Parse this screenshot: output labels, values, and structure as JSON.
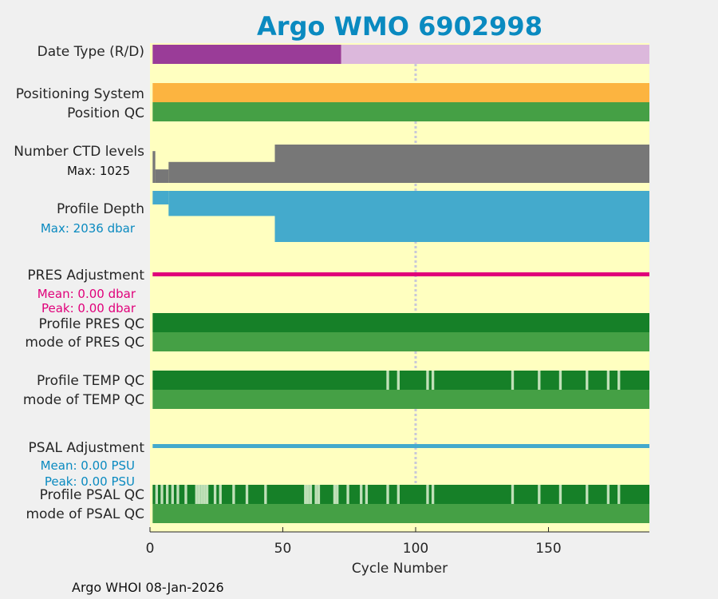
{
  "colors": {
    "background": "#f0f0f0",
    "plot_bg": "#ffffc0",
    "title": "#0a8ac0",
    "date_type_D": "#9a3c98",
    "date_type_R": "#dcb8dc",
    "positioning": "#fcb440",
    "qc_good": "#168028",
    "qc_mode": "#45a045",
    "qc_flagged": "#c0e0b8",
    "ctd_levels": "#777777",
    "profile_depth": "#44aacc",
    "pres_adjustment": "#e0007a",
    "psal_adjustment": "#44aacc",
    "gridline": "#c8c8d8"
  },
  "chart_data": {
    "type": "bar",
    "title": "Argo WMO 6902998",
    "xlabel": "Cycle Number",
    "xlim": [
      0,
      188
    ],
    "xticks": [
      "0",
      "50",
      "100",
      "150"
    ],
    "grid": "dotted vertical line at cycle 100",
    "rows": {
      "date_type": {
        "label": "Date Type (R/D)",
        "segments": [
          {
            "start": 1,
            "end": 72,
            "type": "D"
          },
          {
            "start": 72,
            "end": 188,
            "type": "R"
          }
        ]
      },
      "positioning_system": {
        "label": "Positioning System"
      },
      "position_qc": {
        "label": "Position QC"
      },
      "ctd_levels": {
        "label": "Number CTD levels",
        "max_label": "Max: 1025",
        "max": 1025,
        "steps": [
          {
            "start": 1,
            "end": 2,
            "value": 850
          },
          {
            "start": 2,
            "end": 7,
            "value": 360
          },
          {
            "start": 7,
            "end": 47,
            "value": 560
          },
          {
            "start": 47,
            "end": 188,
            "value": 1025
          }
        ]
      },
      "profile_depth": {
        "label": "Profile Depth",
        "max_label": "Max: 2036 dbar",
        "max": 2036,
        "steps": [
          {
            "start": 1,
            "end": 7,
            "value": 540
          },
          {
            "start": 7,
            "end": 47,
            "value": 1000
          },
          {
            "start": 47,
            "end": 188,
            "value": 2036
          }
        ]
      },
      "pres_adjustment": {
        "label": "PRES Adjustment",
        "mean_label": "Mean: 0.00 dbar",
        "peak_label": "Peak: 0.00 dbar",
        "mean": 0.0,
        "peak": 0.0
      },
      "profile_pres_qc": {
        "label": "Profile PRES QC",
        "flagged_cycles": []
      },
      "mode_pres_qc": {
        "label": "mode of PRES QC"
      },
      "profile_temp_qc": {
        "label": "Profile TEMP QC",
        "flagged_cycles": [
          89,
          93,
          104,
          106,
          136,
          146,
          154,
          164,
          172,
          176
        ]
      },
      "mode_temp_qc": {
        "label": "mode of TEMP QC"
      },
      "psal_adjustment": {
        "label": "PSAL Adjustment",
        "mean_label": "Mean: 0.00 PSU",
        "peak_label": "Peak: 0.00 PSU",
        "mean": 0.0,
        "peak": 0.0
      },
      "profile_psal_qc": {
        "label": "Profile PSAL QC",
        "flagged_cycles": [
          2,
          4,
          6,
          8,
          10,
          13,
          17,
          18,
          19,
          20,
          21,
          24,
          26,
          31,
          36,
          43,
          58,
          59,
          60,
          62,
          63,
          69,
          70,
          74,
          79,
          81,
          89,
          93,
          104,
          106,
          136,
          146,
          154,
          164,
          172,
          176
        ]
      },
      "mode_psal_qc": {
        "label": "mode of PSAL QC"
      }
    }
  },
  "footer": "Argo WHOI 08-Jan-2026"
}
